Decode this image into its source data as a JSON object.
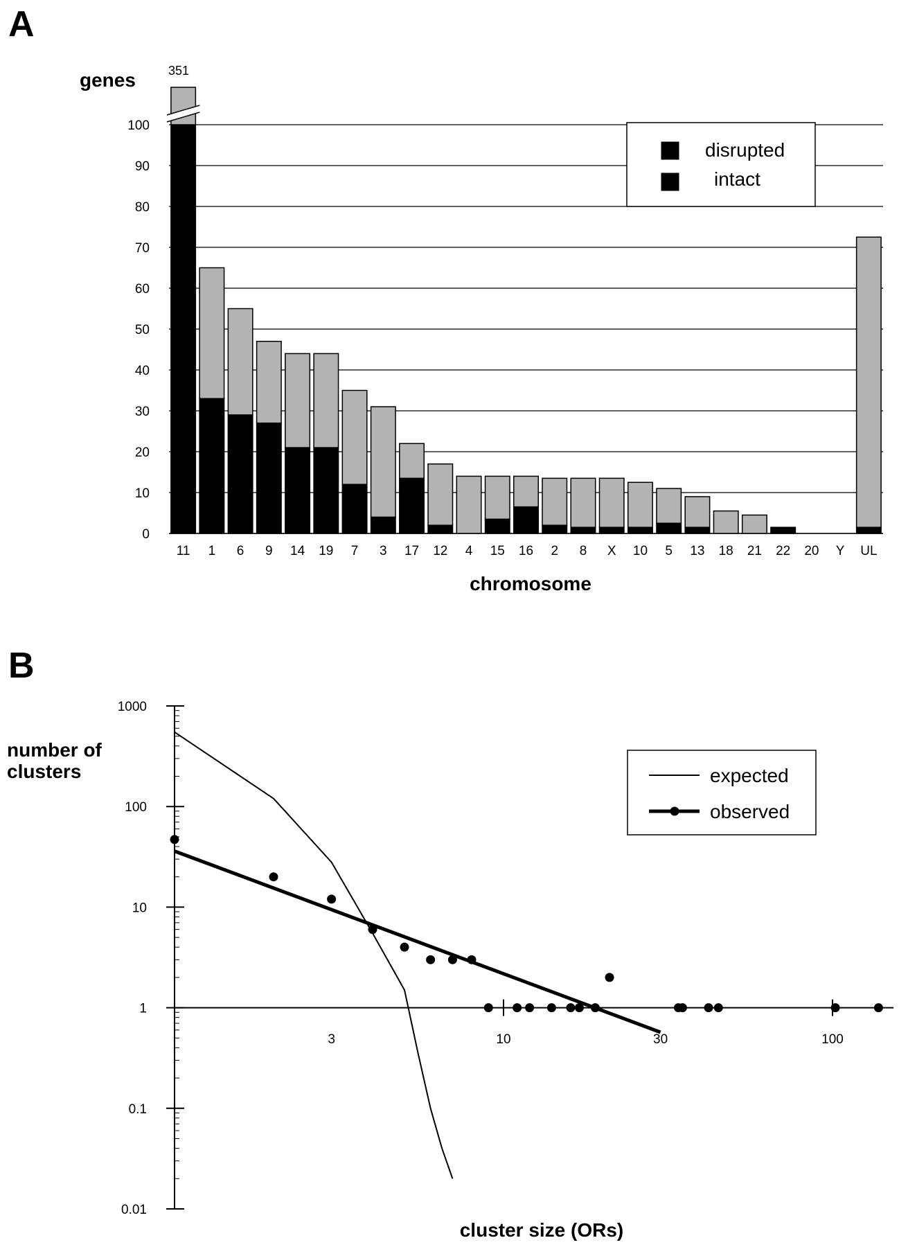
{
  "chart_data": [
    {
      "panel_label": "A",
      "type": "bar",
      "stacked": true,
      "ylabel": "genes",
      "xlabel": "chromosome",
      "ylim": [
        0,
        100
      ],
      "yticks": [
        0,
        10,
        20,
        30,
        40,
        50,
        60,
        70,
        80,
        90,
        100
      ],
      "grid": true,
      "broken_axis_note": "351",
      "legend_position": "top-right",
      "categories": [
        "11",
        "1",
        "6",
        "9",
        "14",
        "19",
        "7",
        "3",
        "17",
        "12",
        "4",
        "15",
        "16",
        "2",
        "8",
        "X",
        "10",
        "5",
        "13",
        "18",
        "21",
        "22",
        "20",
        "Y",
        "UL"
      ],
      "series": [
        {
          "name": "intact",
          "color": "#000000",
          "values": [
            100,
            33,
            29,
            27,
            21,
            21,
            12,
            4,
            13.5,
            2,
            0,
            3.5,
            6.5,
            2,
            1.5,
            1.5,
            1.5,
            2.5,
            1.5,
            0,
            0,
            1.5,
            0,
            0,
            1.5
          ]
        },
        {
          "name": "disrupted",
          "color": "#b3b3b3",
          "values": [
            3,
            32,
            26,
            20,
            23,
            23,
            23,
            27,
            8.5,
            15,
            14,
            10.5,
            7.5,
            11.5,
            12,
            12,
            11,
            8.5,
            7.5,
            5.5,
            4.5,
            0,
            0,
            0,
            71
          ]
        }
      ]
    },
    {
      "panel_label": "B",
      "type": "line",
      "xscale": "log",
      "yscale": "log",
      "xlabel": "cluster size (ORs)",
      "ylabel": "number of clusters",
      "xlim": [
        1,
        200
      ],
      "ylim": [
        0.01,
        1000
      ],
      "xticks": [
        3,
        10,
        30,
        100
      ],
      "yticks": [
        0.01,
        0.1,
        1,
        10,
        100,
        1000
      ],
      "legend_position": "top-right",
      "series": [
        {
          "name": "expected",
          "style": "thin-line",
          "x": [
            1,
            2,
            3,
            4,
            5,
            5.5,
            6,
            6.5,
            7
          ],
          "y": [
            550,
            120,
            28,
            5.5,
            1.5,
            0.35,
            0.1,
            0.04,
            0.02
          ]
        },
        {
          "name": "observed",
          "style": "points",
          "x": [
            1,
            2,
            3,
            4,
            5,
            6,
            7,
            8,
            9,
            11,
            12,
            14,
            16,
            17,
            19,
            21,
            34,
            35,
            42,
            45,
            102,
            138
          ],
          "y": [
            47,
            20,
            12,
            6,
            4,
            3,
            3,
            3,
            1,
            1,
            1,
            1,
            1,
            1,
            1,
            2,
            1,
            1,
            1,
            1,
            1,
            1
          ]
        },
        {
          "name": "observed",
          "style": "thick-line",
          "x": [
            1,
            30
          ],
          "y": [
            36,
            0.57
          ]
        }
      ]
    }
  ]
}
